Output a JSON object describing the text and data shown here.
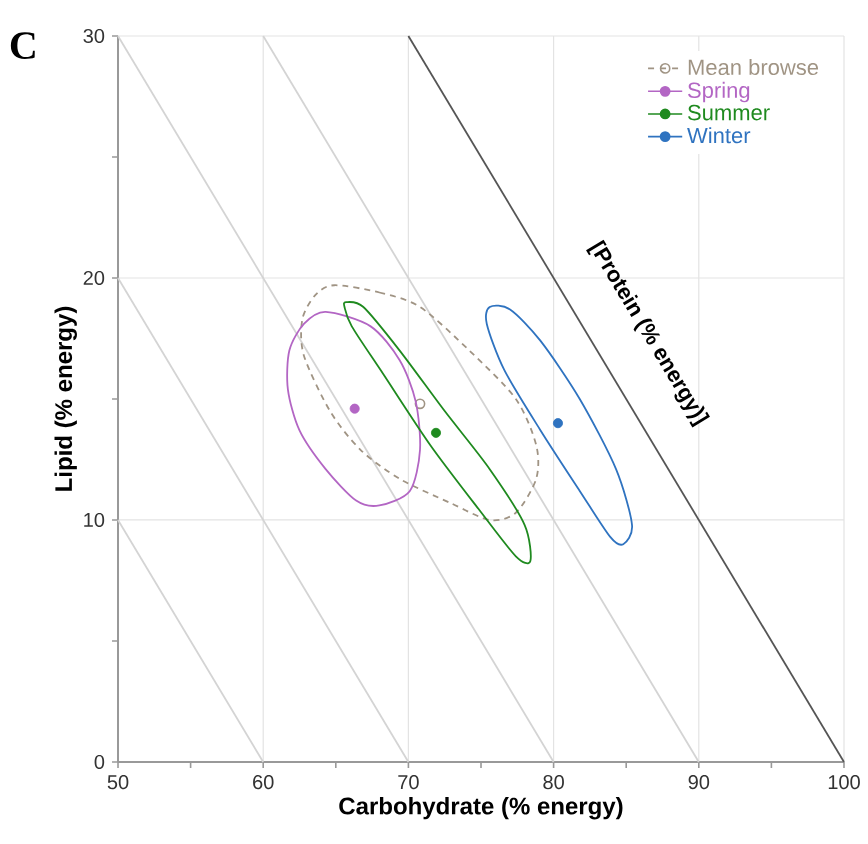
{
  "chart_data": {
    "type": "scatter",
    "xlabel": "Carbohydrate (% energy)",
    "ylabel": "Lipid (% energy)",
    "xlim": [
      50,
      100
    ],
    "ylim": [
      0,
      30
    ],
    "xticks": [
      50,
      {
        "value": 55,
        "label": null
      },
      60,
      {
        "value": 65,
        "label": null
      },
      70,
      {
        "value": 75,
        "label": null
      },
      80,
      {
        "value": 85,
        "label": null
      },
      90,
      {
        "value": 95,
        "label": null
      },
      100
    ],
    "yticks": [
      0,
      {
        "value": 5,
        "label": null
      },
      10,
      {
        "value": 15,
        "label": null
      },
      20,
      {
        "value": 25,
        "label": null
      },
      30
    ],
    "grid": true,
    "legend": "top right",
    "annotations": [
      "C",
      "[Protein (% energy)]"
    ],
    "series": [
      {
        "type": "line",
        "color": "#d4d4d4",
        "x": [
          50,
          60
        ],
        "values": [
          10,
          0
        ]
      },
      {
        "type": "line",
        "color": "#d4d4d4",
        "x": [
          50,
          70
        ],
        "values": [
          20,
          0
        ]
      },
      {
        "type": "line",
        "color": "#d4d4d4",
        "x": [
          50,
          80
        ],
        "values": [
          30,
          0
        ]
      },
      {
        "type": "line",
        "color": "#d4d4d4",
        "x": [
          60,
          90
        ],
        "values": [
          30,
          0
        ]
      },
      {
        "type": "line",
        "color": "#555555",
        "x": [
          70,
          100
        ],
        "values": [
          30,
          0
        ]
      },
      {
        "name": "Mean browse",
        "color": "#a09484",
        "marker": "circle",
        "line_style": "dashed",
        "x": [
          70.8
        ],
        "values": [
          14.8
        ]
      },
      {
        "name": "Spring",
        "color": "#b366c4",
        "marker": "circle",
        "line_style": "solid",
        "x": [
          66.3
        ],
        "values": [
          14.6
        ]
      },
      {
        "name": "Summer",
        "color": "#1f8a1f",
        "marker": "circle",
        "line_style": "solid",
        "x": [
          71.9
        ],
        "values": [
          13.6
        ]
      },
      {
        "name": "Winter",
        "color": "#2f73c0",
        "marker": "circle",
        "line_style": "solid",
        "x": [
          80.3
        ],
        "values": [
          14.0
        ]
      }
    ]
  }
}
